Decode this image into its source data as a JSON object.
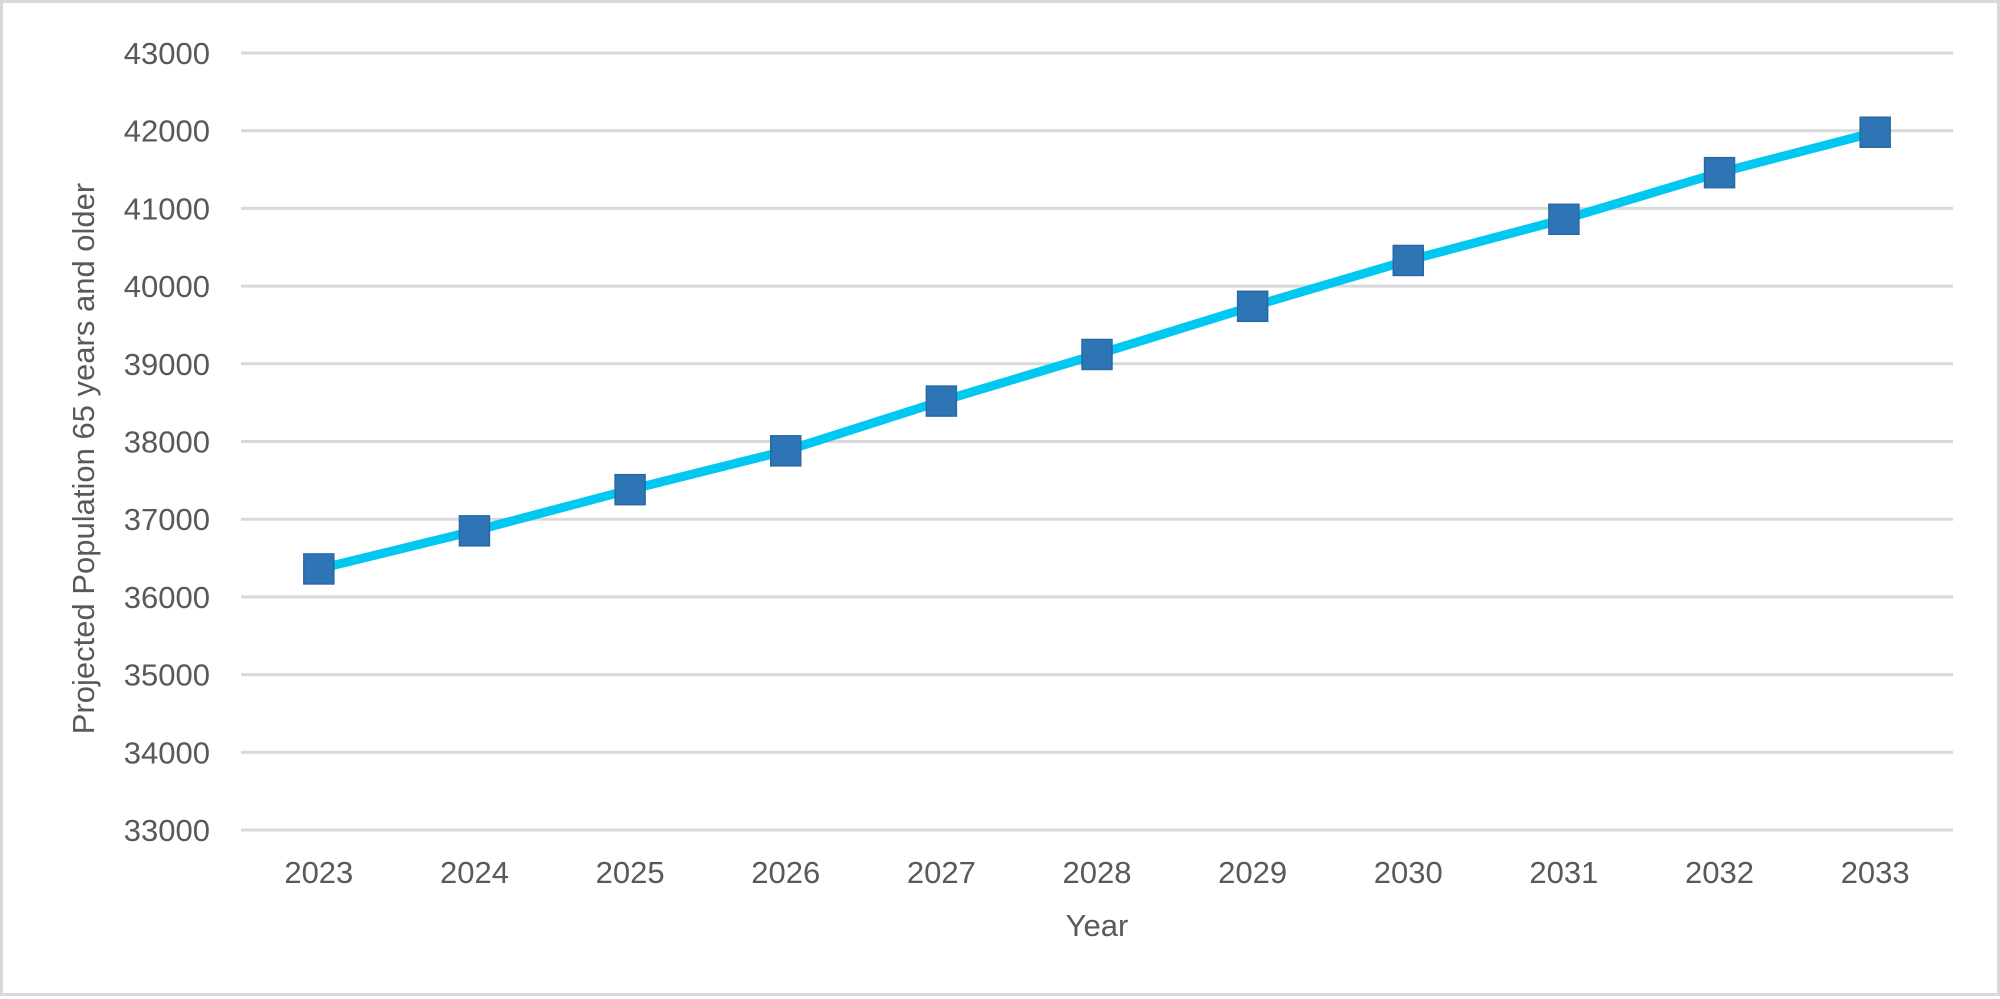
{
  "chart_data": {
    "type": "line",
    "title": "",
    "xlabel": "Year",
    "ylabel": "Projected Population 65 years and older",
    "categories": [
      "2023",
      "2024",
      "2025",
      "2026",
      "2027",
      "2028",
      "2029",
      "2030",
      "2031",
      "2032",
      "2033"
    ],
    "series": [
      {
        "values": [
          36360,
          36850,
          37380,
          37880,
          38520,
          39120,
          39740,
          40330,
          40860,
          41460,
          41980
        ],
        "line_color": "#00c8f0",
        "marker": "square",
        "marker_color": "#2e75b6"
      }
    ],
    "ylim": [
      33000,
      43000
    ],
    "yticks": [
      "33000",
      "34000",
      "35000",
      "36000",
      "37000",
      "38000",
      "39000",
      "40000",
      "41000",
      "42000",
      "43000"
    ],
    "grid": "horizontal",
    "legend": "none",
    "colors": {
      "gridline": "#d9d9d9",
      "text": "#595959",
      "border": "#d9d9d9"
    }
  }
}
